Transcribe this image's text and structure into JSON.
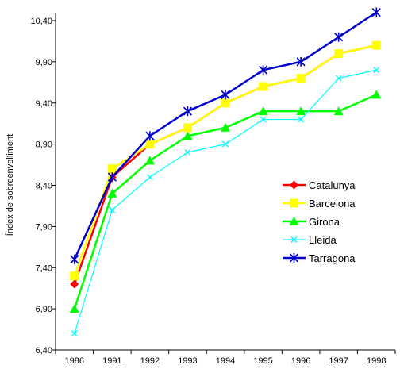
{
  "chart_data": {
    "type": "line",
    "ylabel": "Índex de sobreenvelliment",
    "xlabel": "",
    "categories": [
      "1986",
      "1991",
      "1992",
      "1993",
      "1994",
      "1995",
      "1996",
      "1997",
      "1998"
    ],
    "ylim": [
      6.4,
      10.4
    ],
    "yticks": [
      "6,40",
      "6,90",
      "7,40",
      "7,90",
      "8,40",
      "8,90",
      "9,40",
      "9,90",
      "10,40"
    ],
    "grid": false,
    "legend_position": "right-center",
    "series": [
      {
        "name": "Catalunya",
        "color": "#ff0000",
        "marker": "diamond",
        "values": [
          7.2,
          8.5,
          8.9,
          9.1,
          9.4,
          9.6,
          9.7,
          10.0,
          10.1
        ]
      },
      {
        "name": "Barcelona",
        "color": "#ffff00",
        "marker": "square",
        "values": [
          7.3,
          8.6,
          8.9,
          9.1,
          9.4,
          9.6,
          9.7,
          10.0,
          10.1
        ]
      },
      {
        "name": "Girona",
        "color": "#00ff00",
        "marker": "triangle",
        "values": [
          6.9,
          8.3,
          8.7,
          9.0,
          9.1,
          9.3,
          9.3,
          9.3,
          9.5
        ]
      },
      {
        "name": "Lleida",
        "color": "#00ffff",
        "marker": "x",
        "values": [
          6.6,
          8.1,
          8.5,
          8.8,
          8.9,
          9.2,
          9.2,
          9.7,
          9.8
        ]
      },
      {
        "name": "Tarragona",
        "color": "#0000cc",
        "marker": "star",
        "values": [
          7.5,
          8.5,
          9.0,
          9.3,
          9.5,
          9.8,
          9.9,
          10.2,
          10.5
        ]
      }
    ]
  }
}
